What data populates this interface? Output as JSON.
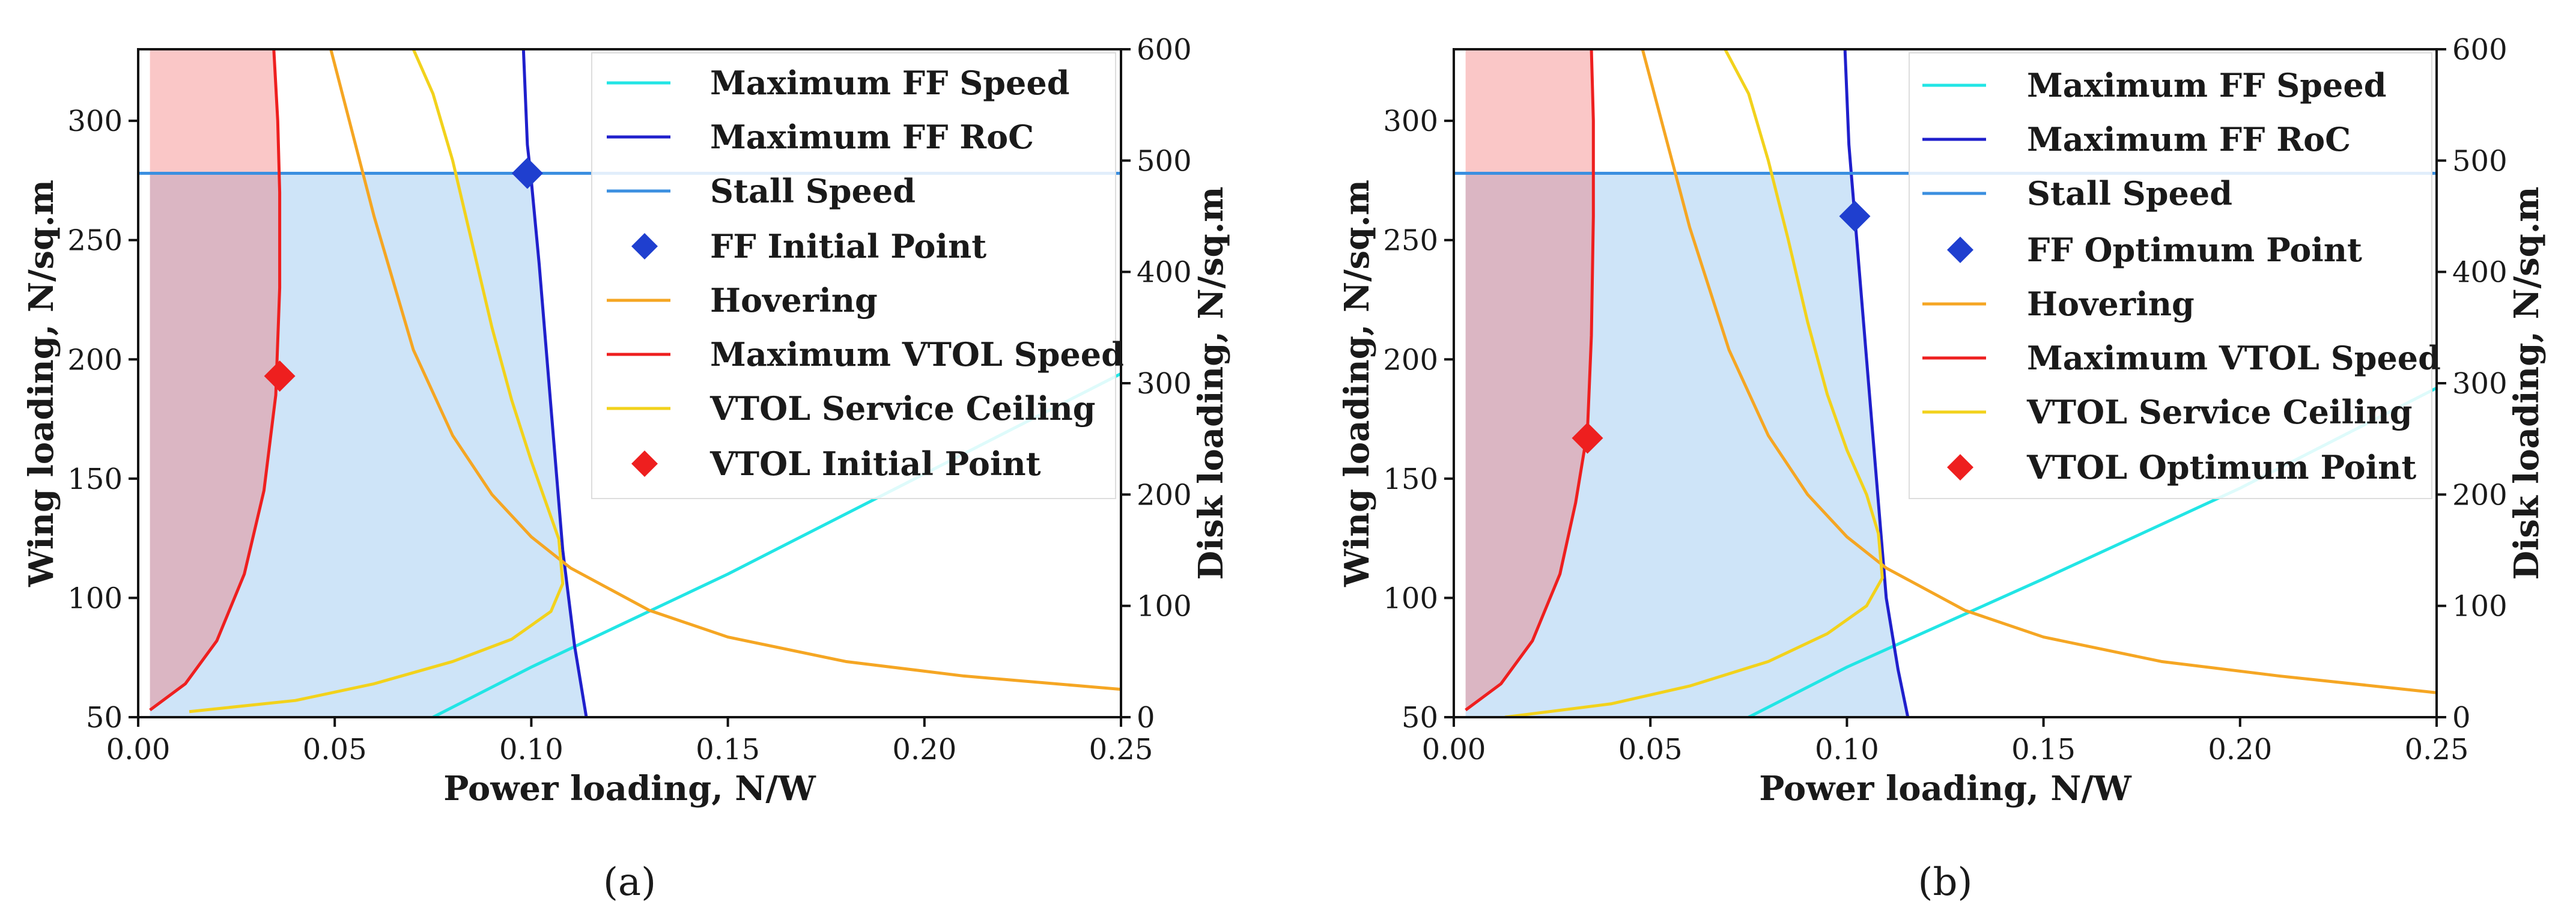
{
  "charts": [
    {
      "id": "a",
      "caption": "(a)",
      "chart_data": {
        "type": "line",
        "xlabel": "Power loading, N/W",
        "ylabel": "Wing loading, N/sq.m",
        "y2label": "Disk loading, N/sq.m",
        "xlim": [
          0.0,
          0.25
        ],
        "ylim": [
          50,
          330
        ],
        "y2lim": [
          0,
          600
        ],
        "xticks": [
          "0.00",
          "0.05",
          "0.10",
          "0.15",
          "0.20",
          "0.25"
        ],
        "xtick_values": [
          0.0,
          0.05,
          0.1,
          0.15,
          0.2,
          0.25
        ],
        "yticks": [
          "50",
          "100",
          "150",
          "200",
          "250",
          "300"
        ],
        "ytick_values": [
          50,
          100,
          150,
          200,
          250,
          300
        ],
        "y2ticks": [
          "0",
          "100",
          "200",
          "300",
          "400",
          "500",
          "600"
        ],
        "y2tick_values": [
          0,
          100,
          200,
          300,
          400,
          500,
          600
        ],
        "legend_position": "top-right",
        "series": [
          {
            "name": "Maximum FF Speed",
            "color": "#22e5e5",
            "axis": "left",
            "kind": "line",
            "x": [
              0.075,
              0.1,
              0.15,
              0.2,
              0.25
            ],
            "y": [
              50,
              71,
              110,
              152,
              194
            ]
          },
          {
            "name": "Maximum FF RoC",
            "color": "#1f1fcc",
            "axis": "left",
            "kind": "line",
            "x": [
              0.098,
              0.0985,
              0.099,
              0.1,
              0.102,
              0.104,
              0.106,
              0.108,
              0.111,
              0.114
            ],
            "y": [
              330,
              310,
              290,
              275,
              240,
              200,
              160,
              120,
              80,
              50
            ]
          },
          {
            "name": "Stall Speed",
            "color": "#3b8fe0",
            "axis": "left",
            "kind": "line",
            "x": [
              0.0,
              0.25
            ],
            "y": [
              278,
              278
            ]
          },
          {
            "name": "FF Initial Point",
            "color": "#1f3fcf",
            "axis": "left",
            "kind": "marker",
            "x": [
              0.099
            ],
            "y": [
              278
            ]
          },
          {
            "name": "Hovering",
            "color": "#f5a623",
            "axis": "right",
            "kind": "line",
            "x": [
              0.049,
              0.06,
              0.07,
              0.08,
              0.09,
              0.1,
              0.11,
              0.13,
              0.15,
              0.18,
              0.21,
              0.25
            ],
            "y": [
              600,
              450,
              330,
              253,
              200,
              162,
              134,
              96,
              72,
              50,
              37,
              25
            ]
          },
          {
            "name": "Maximum VTOL Speed",
            "color": "#ee1f1f",
            "axis": "left",
            "kind": "line",
            "x": [
              0.003,
              0.012,
              0.02,
              0.027,
              0.032,
              0.035,
              0.036,
              0.036,
              0.0355,
              0.0345
            ],
            "y": [
              53,
              64,
              82,
              110,
              145,
              185,
              230,
              270,
              300,
              330
            ]
          },
          {
            "name": "VTOL Service Ceiling",
            "color": "#f2d21c",
            "axis": "right",
            "kind": "line",
            "x": [
              0.013,
              0.04,
              0.06,
              0.08,
              0.095,
              0.105,
              0.108,
              0.107,
              0.104,
              0.1,
              0.095,
              0.09,
              0.085,
              0.08,
              0.075,
              0.07
            ],
            "y": [
              5,
              15,
              30,
              50,
              70,
              95,
              120,
              160,
              190,
              230,
              285,
              350,
              425,
              500,
              560,
              600
            ]
          },
          {
            "name": "VTOL Initial Point",
            "color": "#ee1f1f",
            "axis": "left",
            "kind": "marker",
            "x": [
              0.036
            ],
            "y": [
              193
            ]
          }
        ]
      }
    },
    {
      "id": "b",
      "caption": "(b)",
      "chart_data": {
        "type": "line",
        "xlabel": "Power loading, N/W",
        "ylabel": "Wing loading, N/sq.m",
        "y2label": "Disk loading, N/sq.m",
        "xlim": [
          0.0,
          0.25
        ],
        "ylim": [
          50,
          330
        ],
        "y2lim": [
          0,
          600
        ],
        "xticks": [
          "0.00",
          "0.05",
          "0.10",
          "0.15",
          "0.20",
          "0.25"
        ],
        "xtick_values": [
          0.0,
          0.05,
          0.1,
          0.15,
          0.2,
          0.25
        ],
        "yticks": [
          "50",
          "100",
          "150",
          "200",
          "250",
          "300"
        ],
        "ytick_values": [
          50,
          100,
          150,
          200,
          250,
          300
        ],
        "y2ticks": [
          "0",
          "100",
          "200",
          "300",
          "400",
          "500",
          "600"
        ],
        "y2tick_values": [
          0,
          100,
          200,
          300,
          400,
          500,
          600
        ],
        "legend_position": "top-right",
        "series": [
          {
            "name": "Maximum FF Speed",
            "color": "#22e5e5",
            "axis": "left",
            "kind": "line",
            "x": [
              0.075,
              0.1,
              0.15,
              0.2,
              0.25
            ],
            "y": [
              50,
              71,
              108,
              146,
              188
            ]
          },
          {
            "name": "Maximum FF RoC",
            "color": "#1f1fcc",
            "axis": "left",
            "kind": "line",
            "x": [
              0.0995,
              0.1,
              0.1005,
              0.102,
              0.104,
              0.106,
              0.108,
              0.11,
              0.113,
              0.1155
            ],
            "y": [
              330,
              310,
              290,
              260,
              220,
              180,
              140,
              100,
              70,
              50
            ]
          },
          {
            "name": "Stall Speed",
            "color": "#3b8fe0",
            "axis": "left",
            "kind": "line",
            "x": [
              0.0,
              0.25
            ],
            "y": [
              278,
              278
            ]
          },
          {
            "name": "FF Optimum Point",
            "color": "#1f3fcf",
            "axis": "left",
            "kind": "marker",
            "x": [
              0.102
            ],
            "y": [
              260
            ]
          },
          {
            "name": "Hovering",
            "color": "#f5a623",
            "axis": "right",
            "kind": "line",
            "x": [
              0.048,
              0.06,
              0.07,
              0.08,
              0.09,
              0.1,
              0.11,
              0.13,
              0.15,
              0.18,
              0.21,
              0.25
            ],
            "y": [
              600,
              440,
              330,
              253,
              200,
              162,
              134,
              96,
              72,
              50,
              37,
              22
            ]
          },
          {
            "name": "Maximum VTOL Speed",
            "color": "#ee1f1f",
            "axis": "left",
            "kind": "line",
            "x": [
              0.003,
              0.012,
              0.02,
              0.027,
              0.031,
              0.034,
              0.035,
              0.0355,
              0.0355,
              0.035
            ],
            "y": [
              53,
              64,
              82,
              110,
              140,
              170,
              210,
              260,
              300,
              330
            ]
          },
          {
            "name": "VTOL Service Ceiling",
            "color": "#f2d21c",
            "axis": "right",
            "kind": "line",
            "x": [
              0.013,
              0.04,
              0.06,
              0.08,
              0.095,
              0.105,
              0.109,
              0.108,
              0.105,
              0.1,
              0.095,
              0.09,
              0.085,
              0.08,
              0.075,
              0.069
            ],
            "y": [
              0,
              12,
              28,
              50,
              75,
              100,
              125,
              165,
              200,
              240,
              290,
              355,
              430,
              500,
              560,
              600
            ]
          },
          {
            "name": "VTOL Optimum Point",
            "color": "#ee1f1f",
            "axis": "left",
            "kind": "marker",
            "x": [
              0.034
            ],
            "y": [
              167
            ]
          }
        ]
      }
    }
  ]
}
